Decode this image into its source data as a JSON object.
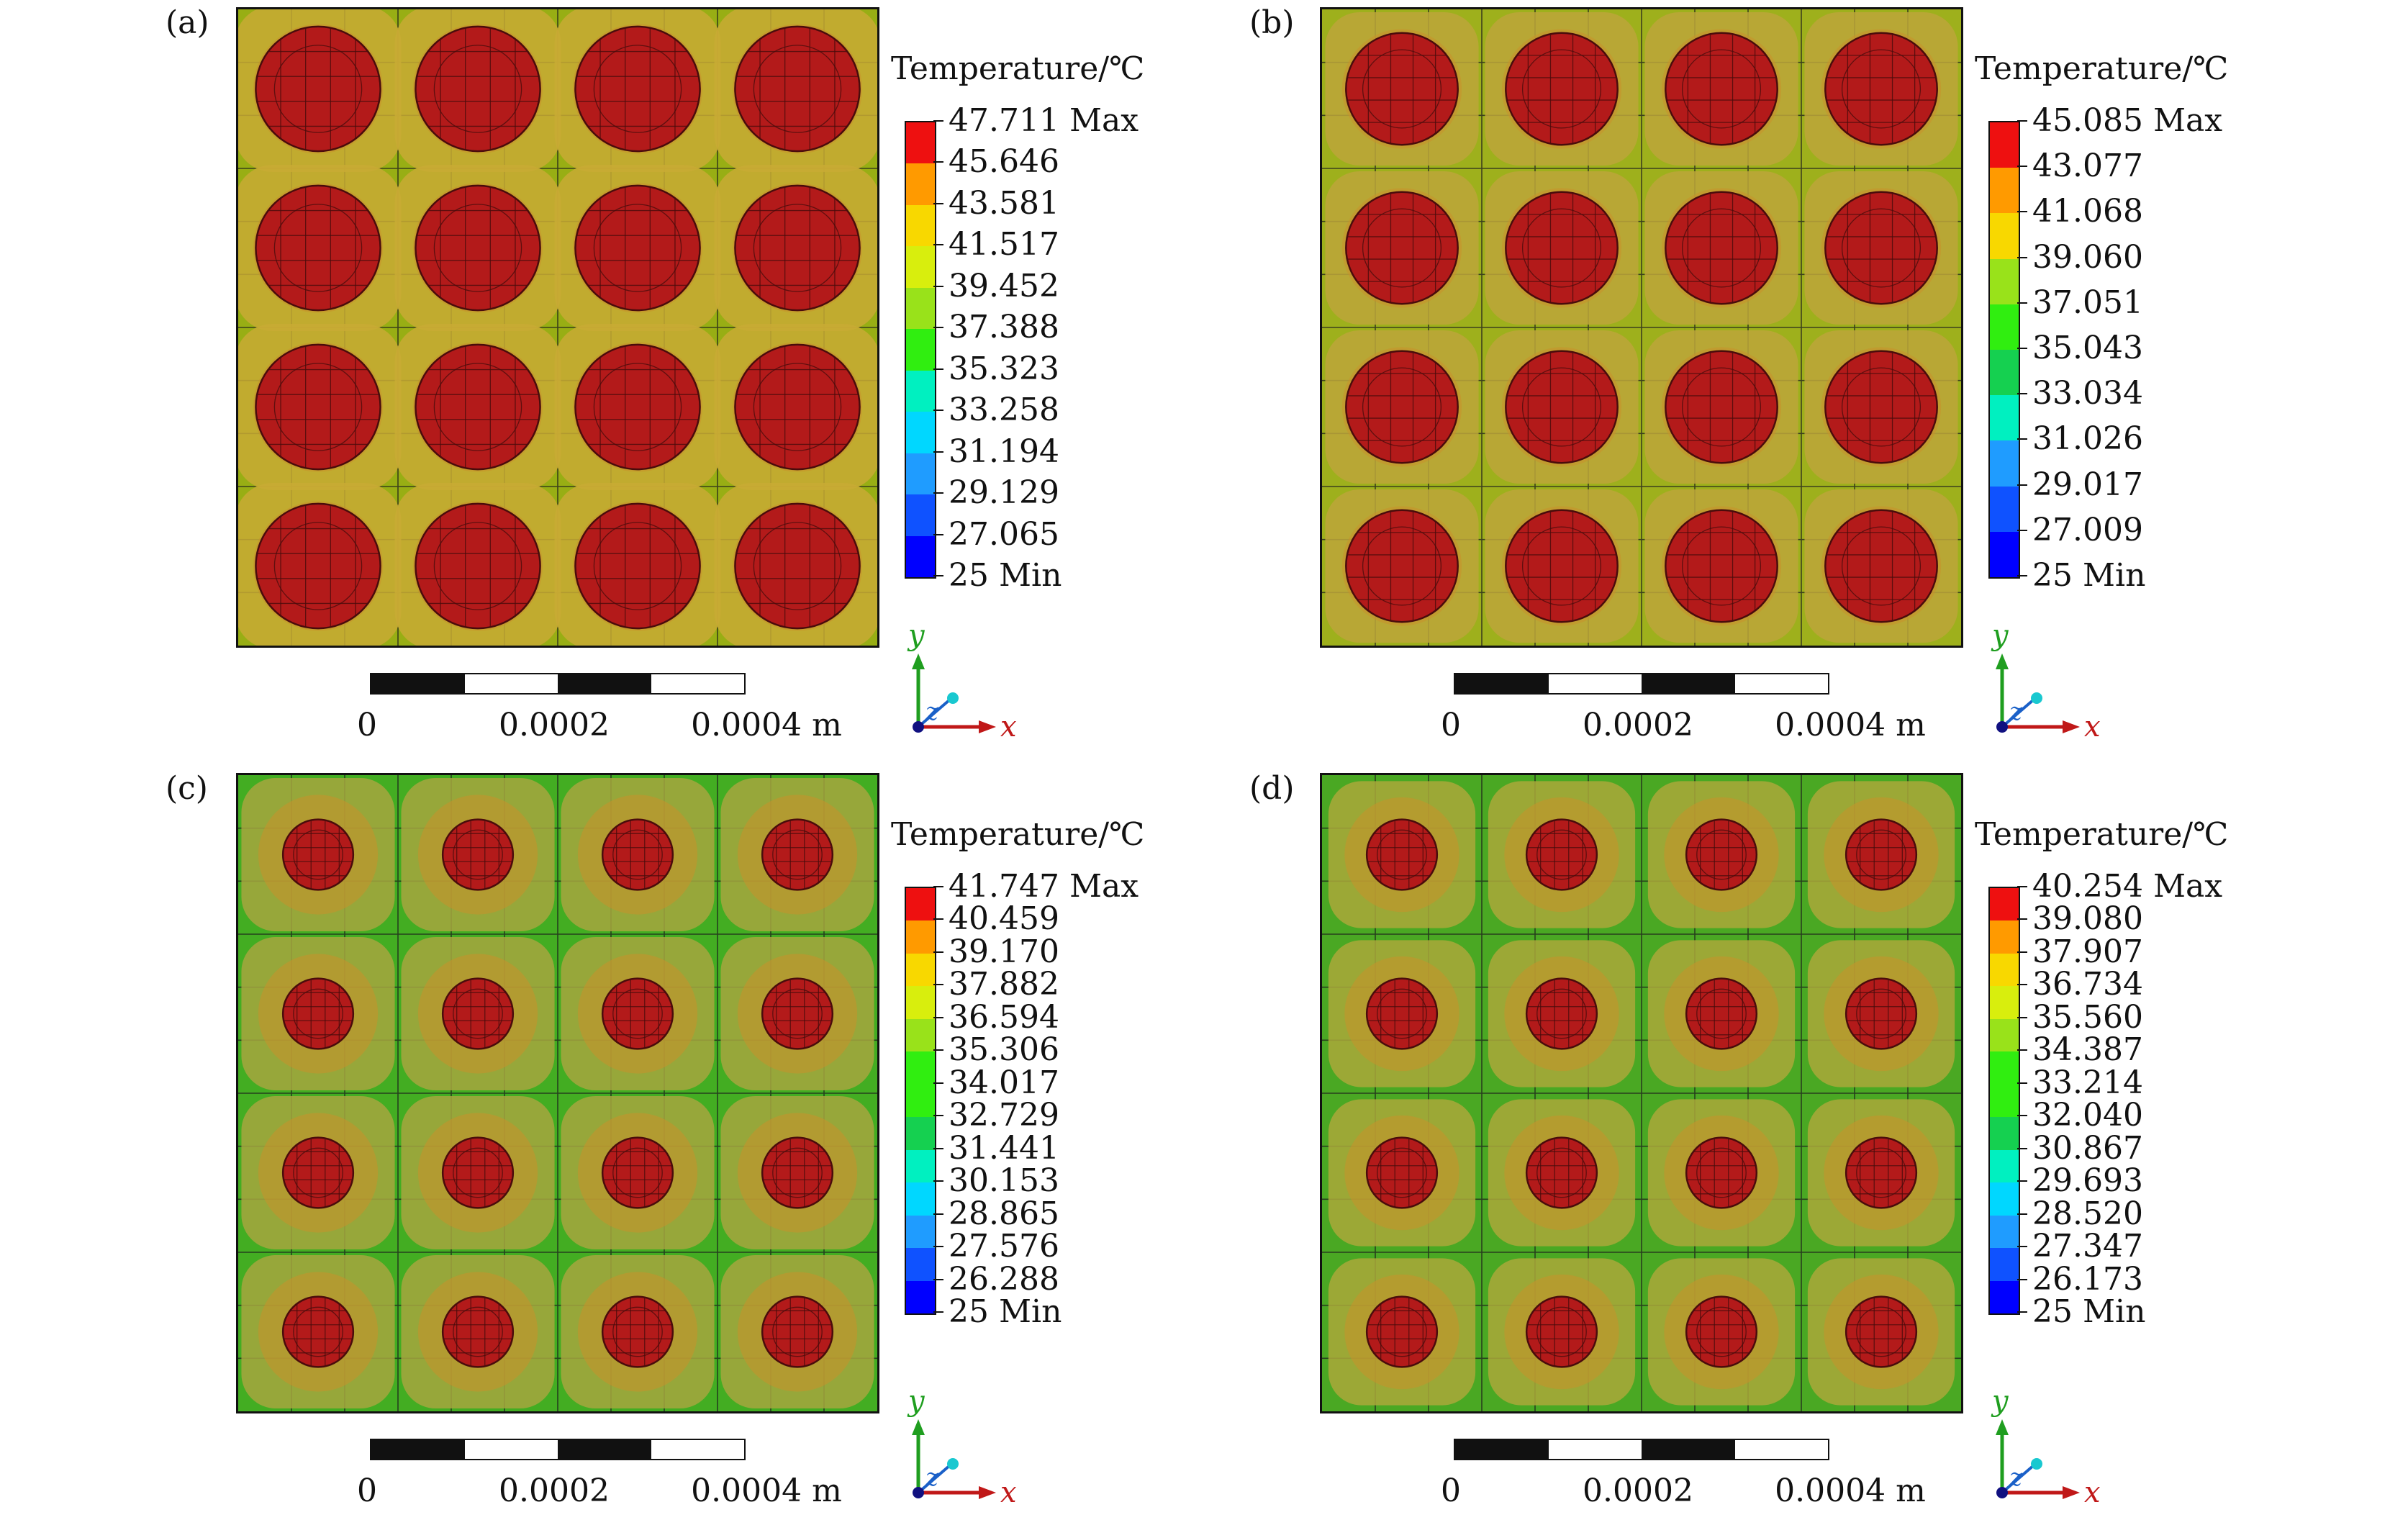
{
  "colors": {
    "colormap": [
      "#0000ff",
      "#0f52ff",
      "#1f9cff",
      "#00d7ff",
      "#00f0c0",
      "#15d050",
      "#30ee10",
      "#99e21a",
      "#d8ee0d",
      "#f8d800",
      "#ff9a00",
      "#ee1010"
    ],
    "spot": "#b31a1a",
    "spotline": "#4a0c0c",
    "mesh": "#1c1c1c"
  },
  "axes": {
    "y": "y",
    "z": "z",
    "x": "x"
  },
  "panels": [
    {
      "label": "(a)",
      "legend_title": "Temperature/℃",
      "legend_values": [
        "47.711 Max",
        "45.646",
        "43.581",
        "41.517",
        "39.452",
        "37.388",
        "35.323",
        "33.258",
        "31.194",
        "29.129",
        "27.065",
        "25 Min"
      ],
      "background": "#98ae14",
      "halo": "#c8aa34",
      "spot_radius": 0.39,
      "halo_radius": 0.52,
      "scale": {
        "ticks": [
          "0",
          "0.0002",
          "0.0004 m"
        ]
      }
    },
    {
      "label": "(b)",
      "legend_title": "Temperature/℃",
      "legend_values": [
        "45.085 Max",
        "43.077",
        "41.068",
        "39.060",
        "37.051",
        "35.043",
        "33.034",
        "31.026",
        "29.017",
        "27.009",
        "25 Min"
      ],
      "background": "#9eb01c",
      "halo": "#bca63a",
      "spot_radius": 0.35,
      "halo_radius": 0.48,
      "scale": {
        "ticks": [
          "0",
          "0.0002",
          "0.0004 m"
        ]
      }
    },
    {
      "label": "(c)",
      "legend_title": "Temperature/℃",
      "legend_values": [
        "41.747 Max",
        "40.459",
        "39.170",
        "37.882",
        "36.594",
        "35.306",
        "34.017",
        "32.729",
        "31.441",
        "30.153",
        "28.865",
        "27.576",
        "26.288",
        "25 Min"
      ],
      "background": "#43ad22",
      "halo": "#a6a63e",
      "spot_radius": 0.22,
      "halo_radius": 0.48,
      "scale": {
        "ticks": [
          "0",
          "0.0002",
          "0.0004 m"
        ]
      }
    },
    {
      "label": "(d)",
      "legend_title": "Temperature/℃",
      "legend_values": [
        "40.254 Max",
        "39.080",
        "37.907",
        "36.734",
        "35.560",
        "34.387",
        "33.214",
        "32.040",
        "30.867",
        "29.693",
        "28.520",
        "27.347",
        "26.173",
        "25 Min"
      ],
      "background": "#4aa823",
      "halo": "#aaa83a",
      "spot_radius": 0.22,
      "halo_radius": 0.46,
      "scale": {
        "ticks": [
          "0",
          "0.0002",
          "0.0004 m"
        ]
      }
    }
  ]
}
